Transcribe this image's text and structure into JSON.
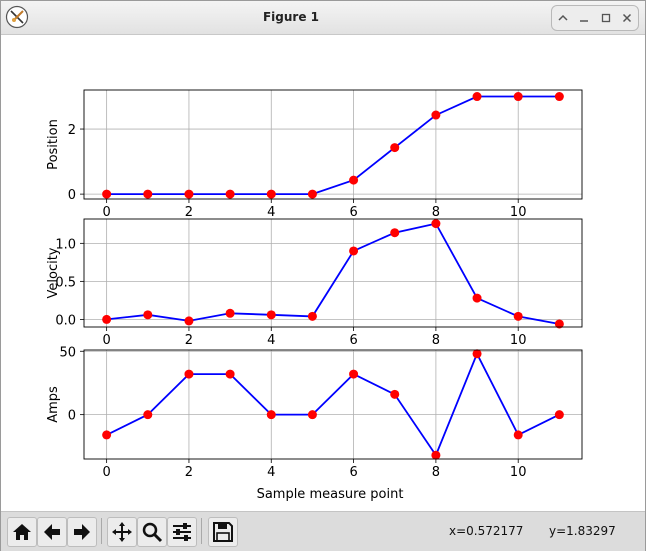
{
  "window": {
    "title": "Figure 1",
    "controls": [
      "up-icon",
      "minimize-icon",
      "maximize-icon",
      "close-icon"
    ]
  },
  "chart_data": [
    {
      "type": "line",
      "ylabel": "Position",
      "x": [
        0,
        1,
        2,
        3,
        4,
        5,
        6,
        7,
        8,
        9,
        10,
        11
      ],
      "values": [
        0,
        0,
        0,
        0,
        0,
        0,
        0.43,
        1.43,
        2.43,
        3.0,
        3.0,
        3.0
      ],
      "yticks": [
        0,
        2
      ],
      "xticks": [
        0,
        2,
        4,
        6,
        8,
        10
      ],
      "ylim": [
        -0.15,
        3.2
      ],
      "xlim": [
        -0.55,
        11.55
      ],
      "grid": true,
      "line_color": "#0000ff",
      "marker_color": "#ff0000"
    },
    {
      "type": "line",
      "ylabel": "Velocity",
      "x": [
        0,
        1,
        2,
        3,
        4,
        5,
        6,
        7,
        8,
        9,
        10,
        11
      ],
      "values": [
        0,
        0.06,
        -0.02,
        0.08,
        0.06,
        0.04,
        0.9,
        1.14,
        1.26,
        0.28,
        0.04,
        -0.06
      ],
      "yticks": [
        0.0,
        0.5,
        1.0
      ],
      "ytick_labels": [
        "0.0",
        "0.5",
        "1.0"
      ],
      "xticks": [
        0,
        2,
        4,
        6,
        8,
        10
      ],
      "ylim": [
        -0.1,
        1.32
      ],
      "xlim": [
        -0.55,
        11.55
      ],
      "grid": true,
      "line_color": "#0000ff",
      "marker_color": "#ff0000"
    },
    {
      "type": "line",
      "ylabel": "Amps",
      "xlabel": "Sample measure point",
      "x": [
        0,
        1,
        2,
        3,
        4,
        5,
        6,
        7,
        8,
        9,
        10,
        11
      ],
      "values": [
        -16,
        0,
        32,
        32,
        0,
        0,
        32,
        16,
        -32,
        48,
        -16,
        0
      ],
      "yticks": [
        0,
        50
      ],
      "xticks": [
        0,
        2,
        4,
        6,
        8,
        10
      ],
      "ylim": [
        -35,
        51
      ],
      "xlim": [
        -0.55,
        11.55
      ],
      "grid": true,
      "line_color": "#0000ff",
      "marker_color": "#ff0000"
    }
  ],
  "toolbar": {
    "buttons": [
      "home-icon",
      "back-icon",
      "forward-icon",
      "pan-icon",
      "zoom-icon",
      "configure-subplots-icon",
      "save-icon"
    ],
    "coords_x": "x=0.572177",
    "coords_y": "y=1.83297"
  }
}
